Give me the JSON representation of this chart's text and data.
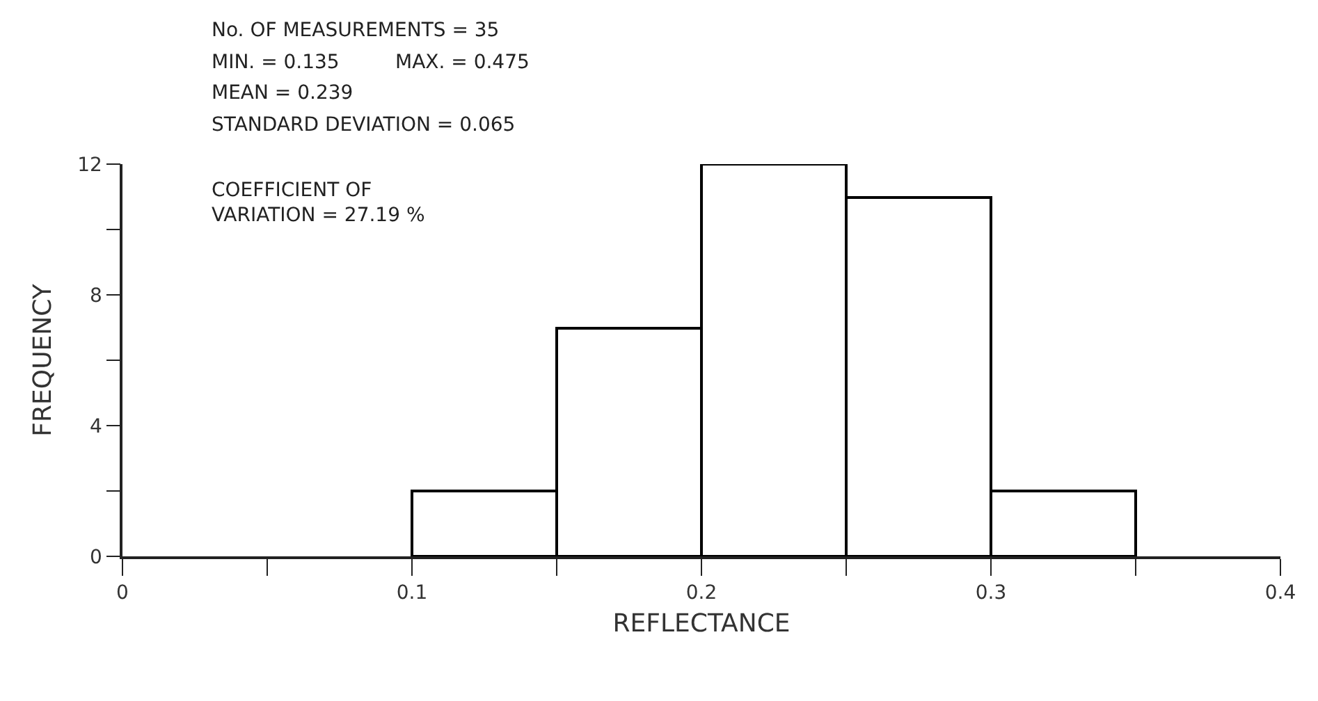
{
  "chart_data": {
    "type": "histogram",
    "xlabel": "REFLECTANCE",
    "ylabel": "FREQUENCY",
    "bins": [
      0.1,
      0.15,
      0.2,
      0.25,
      0.3,
      0.35
    ],
    "values": [
      2,
      7,
      12,
      11,
      2
    ],
    "color": "#000000",
    "xlim": [
      0,
      0.4
    ],
    "xticks": [
      0,
      {
        "value": 0.05,
        "label": null
      },
      0.1,
      {
        "value": 0.15,
        "label": null
      },
      0.2,
      {
        "value": 0.25,
        "label": null
      },
      0.3,
      {
        "value": 0.35,
        "label": null
      },
      0.4
    ],
    "ylim": [
      0,
      12
    ],
    "yticks": [
      0,
      {
        "value": 2,
        "label": null
      },
      4,
      {
        "value": 6,
        "label": null
      },
      8,
      {
        "value": 10,
        "label": null
      },
      12
    ],
    "annotations": [
      "No. OF MEASUREMENTS = 35",
      "MIN. = 0.135",
      "MAX. = 0.475",
      "MEAN = 0.239",
      "STANDARD DEVIATION = 0.065",
      "COEFFICIENT OF\nVARIATION = 27.19 %"
    ]
  }
}
